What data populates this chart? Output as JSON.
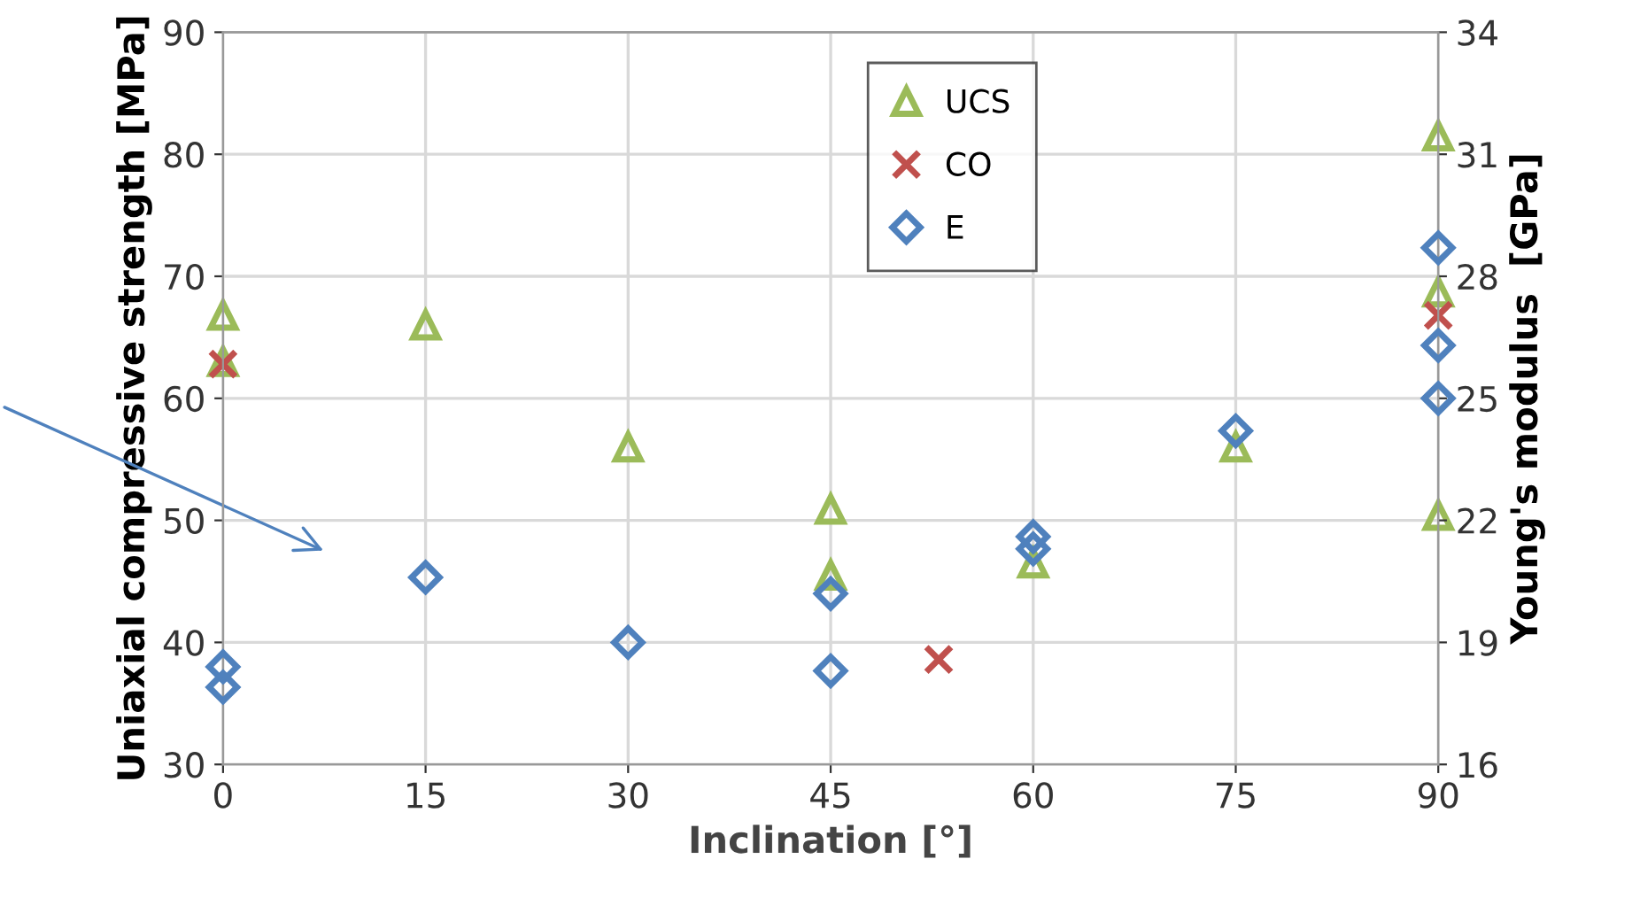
{
  "chart_data": {
    "type": "scatter",
    "xlabel": "Inclination [°]",
    "ylabel": "Uniaxial compressive strength [MPa]",
    "y2label": "Young's modulus  [GPa]",
    "xlim": [
      0,
      90
    ],
    "xticks": [
      0,
      15,
      30,
      45,
      60,
      75,
      90
    ],
    "ylim": [
      30,
      90
    ],
    "yticks": [
      30,
      40,
      50,
      60,
      70,
      80,
      90
    ],
    "y2lim": [
      16,
      34
    ],
    "y2ticks": [
      16,
      19,
      22,
      25,
      28,
      31,
      34
    ],
    "grid": true,
    "legend": "top",
    "series": [
      {
        "name": "UCS",
        "color": "#9bbb59",
        "marker": "triangle",
        "x": [
          0,
          0,
          15,
          30,
          45,
          45,
          60,
          75,
          90,
          90,
          90
        ],
        "values": [
          66.8,
          63,
          66,
          56,
          50.9,
          45.5,
          46.5,
          56,
          50.4,
          81.5,
          68.7
        ]
      },
      {
        "name": "CO",
        "color": "#c0504d",
        "marker": "cross",
        "x": [
          0,
          53,
          90
        ],
        "values": [
          62.8,
          38.6,
          66.8
        ]
      },
      {
        "name": "E",
        "color": "#4f81bd",
        "marker": "diamond",
        "axis": "y2",
        "x": [
          0,
          0,
          15,
          30,
          45,
          45,
          60,
          60,
          75,
          90,
          90,
          90
        ],
        "values": [
          18.4,
          17.9,
          20.6,
          19.0,
          20.2,
          18.3,
          21.6,
          21.3,
          24.2,
          28.7,
          26.3,
          25.0
        ]
      }
    ]
  }
}
